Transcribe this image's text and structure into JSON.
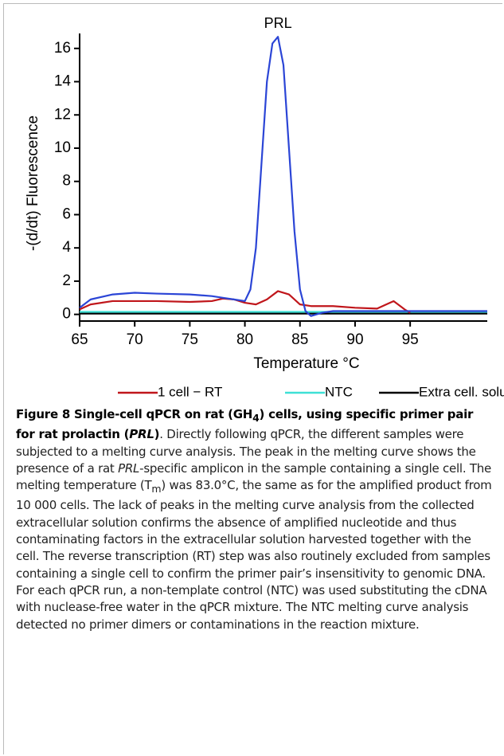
{
  "chart_data": {
    "type": "line",
    "xlabel": "Temperature °C",
    "ylabel": "-(d/dt) Fluorescence",
    "xlim": [
      65,
      102
    ],
    "ylim": [
      -0.4,
      16.9
    ],
    "xticks": [
      65,
      70,
      75,
      80,
      85,
      90,
      95
    ],
    "yticks": [
      0,
      2,
      4,
      6,
      8,
      10,
      12,
      14,
      16
    ],
    "series": [
      {
        "name": "PRL",
        "color": "#2b45d6",
        "x": [
          65,
          66,
          68,
          70,
          72,
          75,
          77,
          78,
          79,
          80,
          80.5,
          81,
          81.5,
          82,
          82.5,
          83,
          83.5,
          84,
          84.5,
          85,
          85.5,
          86,
          87,
          88,
          90,
          95,
          102
        ],
        "values": [
          0.4,
          0.9,
          1.2,
          1.3,
          1.25,
          1.2,
          1.1,
          1.0,
          0.9,
          0.8,
          1.5,
          4,
          9,
          14,
          16.3,
          16.7,
          15,
          10,
          5,
          1.5,
          0.2,
          -0.1,
          0.1,
          0.2,
          0.2,
          0.2,
          0.2
        ]
      },
      {
        "name": "1 cell − RT",
        "color": "#c0161b",
        "x": [
          65,
          66,
          68,
          70,
          72,
          75,
          77,
          78,
          79,
          80,
          81,
          82,
          83,
          84,
          85,
          86,
          88,
          90,
          92,
          93.5,
          94.5,
          95
        ],
        "values": [
          0.3,
          0.6,
          0.8,
          0.8,
          0.8,
          0.75,
          0.8,
          0.95,
          0.9,
          0.7,
          0.6,
          0.9,
          1.4,
          1.2,
          0.6,
          0.5,
          0.5,
          0.4,
          0.35,
          0.8,
          0.3,
          0.1
        ]
      },
      {
        "name": "NTC",
        "color": "#3ee0d6",
        "x": [
          65,
          70,
          80,
          90,
          102
        ],
        "values": [
          0.15,
          0.15,
          0.15,
          0.15,
          0.15
        ]
      },
      {
        "name": "Extra cell. solut.",
        "color": "#000000",
        "x": [
          65,
          70,
          80,
          90,
          102
        ],
        "values": [
          0.05,
          0.05,
          0.05,
          0.05,
          0.05
        ]
      }
    ]
  },
  "caption": {
    "title": [
      "Figure 8 Single-cell qPCR on rat (GH",
      "4",
      ") cells, using specific primer pair for rat prolactin (",
      "PRL",
      ")"
    ],
    "body": [
      ". Directly following qPCR, the different samples were subjected to a melting curve analysis. The peak in the melting curve shows the presence of a rat ",
      "PRL",
      "-specific amplicon in the sample containing a single cell. The melting temperature (T",
      "m",
      ") was 83.0°C, the same as for the amplified product from 10 000 cells. The lack of peaks in the melting curve analysis from the collected extracellular solution confirms the absence of amplified nucleotide and thus contaminating factors in the extracellular solution harvested together with the cell. The reverse transcription (RT) step was also routinely excluded from samples containing a single cell to confirm the primer pair’s insensitivity to genomic DNA. For each qPCR run, a non-template control (NTC) was used substituting the cDNA with nuclease-free water in the qPCR mixture. The NTC melting curve analysis detected no primer dimers or contaminations in the reaction mixture."
    ]
  }
}
